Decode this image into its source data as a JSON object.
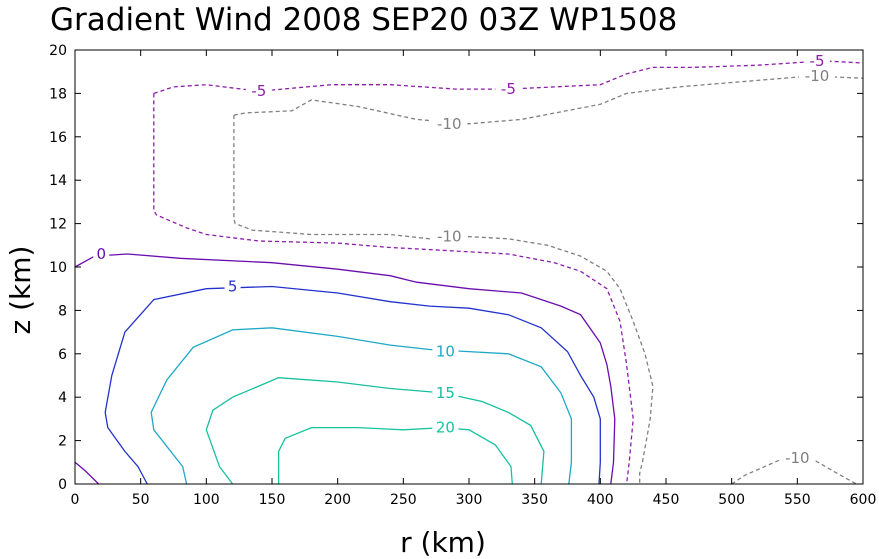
{
  "chart_data": {
    "type": "contour",
    "title": "Gradient Wind 2008 SEP20 03Z   WP1508",
    "xlabel": "r (km)",
    "ylabel": "z (km)",
    "xlim": [
      0,
      600
    ],
    "ylim": [
      0,
      20
    ],
    "xticks": [
      0,
      50,
      100,
      150,
      200,
      250,
      300,
      350,
      400,
      450,
      500,
      550,
      600
    ],
    "yticks": [
      0,
      2,
      4,
      6,
      8,
      10,
      12,
      14,
      16,
      18,
      20
    ],
    "grid": false,
    "legend": "none",
    "contours": [
      {
        "level": -10,
        "color": "#808080",
        "dashed": true,
        "points": [
          [
            121,
            17.0
          ],
          [
            121,
            16.8
          ],
          [
            121,
            12.2
          ],
          [
            122,
            12.0
          ],
          [
            135,
            11.7
          ],
          [
            180,
            11.5
          ],
          [
            240,
            11.5
          ],
          [
            270,
            11.3
          ],
          [
            300,
            11.4
          ],
          [
            330,
            11.3
          ],
          [
            360,
            11.0
          ],
          [
            385,
            10.5
          ],
          [
            405,
            9.8
          ],
          [
            415,
            9.0
          ],
          [
            425,
            7.5
          ],
          [
            434,
            6.0
          ],
          [
            440,
            4.5
          ],
          [
            438,
            3.0
          ],
          [
            432,
            1.0
          ],
          [
            430,
            0.5
          ],
          [
            430,
            0
          ]
        ],
        "labels": [
          {
            "text": "-10",
            "x": 285,
            "y": 11.4
          }
        ]
      },
      {
        "level": -10,
        "color": "#808080",
        "dashed": true,
        "points": [
          [
            121,
            17.0
          ],
          [
            130,
            17.1
          ],
          [
            165,
            17.2
          ],
          [
            180,
            17.7
          ],
          [
            215,
            17.4
          ],
          [
            260,
            16.8
          ],
          [
            300,
            16.6
          ],
          [
            340,
            16.8
          ],
          [
            400,
            17.5
          ],
          [
            420,
            18.0
          ],
          [
            460,
            18.3
          ],
          [
            500,
            18.5
          ],
          [
            540,
            18.7
          ],
          [
            560,
            18.8
          ],
          [
            600,
            18.7
          ]
        ],
        "labels": [
          {
            "text": "-10",
            "x": 285,
            "y": 16.6
          },
          {
            "text": "-10",
            "x": 565,
            "y": 18.8
          }
        ]
      },
      {
        "level": -10,
        "color": "#808080",
        "dashed": true,
        "points": [
          [
            500,
            0
          ],
          [
            510,
            0.4
          ],
          [
            540,
            1.2
          ],
          [
            560,
            1.2
          ],
          [
            580,
            0.5
          ],
          [
            595,
            0
          ]
        ],
        "labels": [
          {
            "text": "-10",
            "x": 550,
            "y": 1.2
          }
        ]
      },
      {
        "level": -5,
        "color": "#8B1FA8",
        "dashed": true,
        "points": [
          [
            60,
            18.0
          ],
          [
            60,
            12.6
          ],
          [
            62,
            12.4
          ],
          [
            85,
            11.8
          ],
          [
            100,
            11.5
          ],
          [
            140,
            11.2
          ],
          [
            200,
            11.1
          ],
          [
            240,
            10.9
          ],
          [
            270,
            10.8
          ],
          [
            300,
            10.7
          ],
          [
            330,
            10.6
          ],
          [
            365,
            10.2
          ],
          [
            385,
            9.8
          ],
          [
            405,
            9.0
          ],
          [
            415,
            7.5
          ],
          [
            420,
            5.5
          ],
          [
            425,
            3.0
          ],
          [
            422,
            1.0
          ],
          [
            420,
            0
          ]
        ],
        "labels": []
      },
      {
        "level": -5,
        "color": "#8B1FA8",
        "dashed": true,
        "points": [
          [
            60,
            18.0
          ],
          [
            75,
            18.3
          ],
          [
            100,
            18.4
          ],
          [
            140,
            18.1
          ],
          [
            195,
            18.4
          ],
          [
            240,
            18.4
          ],
          [
            290,
            18.2
          ],
          [
            330,
            18.2
          ],
          [
            400,
            18.4
          ],
          [
            420,
            18.9
          ],
          [
            440,
            19.2
          ],
          [
            470,
            19.2
          ],
          [
            520,
            19.3
          ],
          [
            570,
            19.5
          ],
          [
            600,
            19.4
          ]
        ],
        "labels": [
          {
            "text": "-5",
            "x": 140,
            "y": 18.1
          },
          {
            "text": "-5",
            "x": 330,
            "y": 18.2
          },
          {
            "text": "-5",
            "x": 565,
            "y": 19.5
          }
        ]
      },
      {
        "level": 0,
        "color": "#6A0DAD",
        "dashed": false,
        "points": [
          [
            0,
            10.0
          ],
          [
            15,
            10.5
          ],
          [
            40,
            10.6
          ],
          [
            80,
            10.4
          ],
          [
            150,
            10.2
          ],
          [
            200,
            9.9
          ],
          [
            240,
            9.6
          ],
          [
            260,
            9.3
          ],
          [
            300,
            9.0
          ],
          [
            340,
            8.8
          ],
          [
            370,
            8.2
          ],
          [
            385,
            7.8
          ],
          [
            400,
            6.5
          ],
          [
            405,
            5.5
          ],
          [
            408,
            4.5
          ],
          [
            411,
            3.0
          ],
          [
            410,
            1.0
          ],
          [
            408,
            0
          ]
        ],
        "labels": [
          {
            "text": "0",
            "x": 20,
            "y": 10.6
          }
        ]
      },
      {
        "level": 0,
        "color": "#6A0DAD",
        "dashed": false,
        "points": [
          [
            0,
            1.0
          ],
          [
            8,
            0.6
          ],
          [
            18,
            0
          ]
        ],
        "labels": []
      },
      {
        "level": 5,
        "color": "#2233CC",
        "dashed": false,
        "points": [
          [
            55,
            0
          ],
          [
            48,
            0.8
          ],
          [
            38,
            1.5
          ],
          [
            25,
            2.6
          ],
          [
            23,
            3.3
          ],
          [
            28,
            5.0
          ],
          [
            38,
            7.0
          ],
          [
            60,
            8.5
          ],
          [
            100,
            9.0
          ],
          [
            150,
            9.1
          ],
          [
            200,
            8.8
          ],
          [
            240,
            8.4
          ],
          [
            270,
            8.2
          ],
          [
            300,
            8.1
          ],
          [
            330,
            7.8
          ],
          [
            355,
            7.2
          ],
          [
            375,
            6.1
          ],
          [
            385,
            5.0
          ],
          [
            395,
            4.0
          ],
          [
            400,
            3.0
          ],
          [
            400,
            1.0
          ],
          [
            399,
            0
          ]
        ],
        "labels": [
          {
            "text": "5",
            "x": 120,
            "y": 9.1
          }
        ]
      },
      {
        "level": 10,
        "color": "#1EA8C8",
        "dashed": false,
        "points": [
          [
            85,
            0
          ],
          [
            82,
            0.8
          ],
          [
            60,
            2.5
          ],
          [
            58,
            3.3
          ],
          [
            70,
            4.8
          ],
          [
            90,
            6.3
          ],
          [
            120,
            7.1
          ],
          [
            150,
            7.2
          ],
          [
            200,
            6.8
          ],
          [
            240,
            6.4
          ],
          [
            270,
            6.2
          ],
          [
            300,
            6.1
          ],
          [
            330,
            6.0
          ],
          [
            355,
            5.4
          ],
          [
            370,
            4.2
          ],
          [
            378,
            3.0
          ],
          [
            378,
            1.0
          ],
          [
            376,
            0
          ]
        ],
        "labels": [
          {
            "text": "10",
            "x": 282,
            "y": 6.1
          }
        ]
      },
      {
        "level": 15,
        "color": "#17BFA0",
        "dashed": false,
        "points": [
          [
            120,
            0
          ],
          [
            110,
            0.8
          ],
          [
            100,
            2.5
          ],
          [
            105,
            3.4
          ],
          [
            120,
            4.0
          ],
          [
            155,
            4.9
          ],
          [
            200,
            4.7
          ],
          [
            240,
            4.4
          ],
          [
            280,
            4.2
          ],
          [
            310,
            3.8
          ],
          [
            330,
            3.3
          ],
          [
            347,
            2.7
          ],
          [
            357,
            1.5
          ],
          [
            355,
            0
          ]
        ],
        "labels": [
          {
            "text": "15",
            "x": 282,
            "y": 4.2
          }
        ]
      },
      {
        "level": 20,
        "color": "#17C4A0",
        "dashed": false,
        "points": [
          [
            155,
            0
          ],
          [
            155,
            1.5
          ],
          [
            160,
            2.1
          ],
          [
            180,
            2.6
          ],
          [
            215,
            2.6
          ],
          [
            250,
            2.5
          ],
          [
            280,
            2.6
          ],
          [
            300,
            2.5
          ],
          [
            320,
            1.8
          ],
          [
            332,
            0.8
          ],
          [
            333,
            0
          ]
        ],
        "labels": [
          {
            "text": "20",
            "x": 282,
            "y": 2.6
          }
        ]
      }
    ]
  }
}
